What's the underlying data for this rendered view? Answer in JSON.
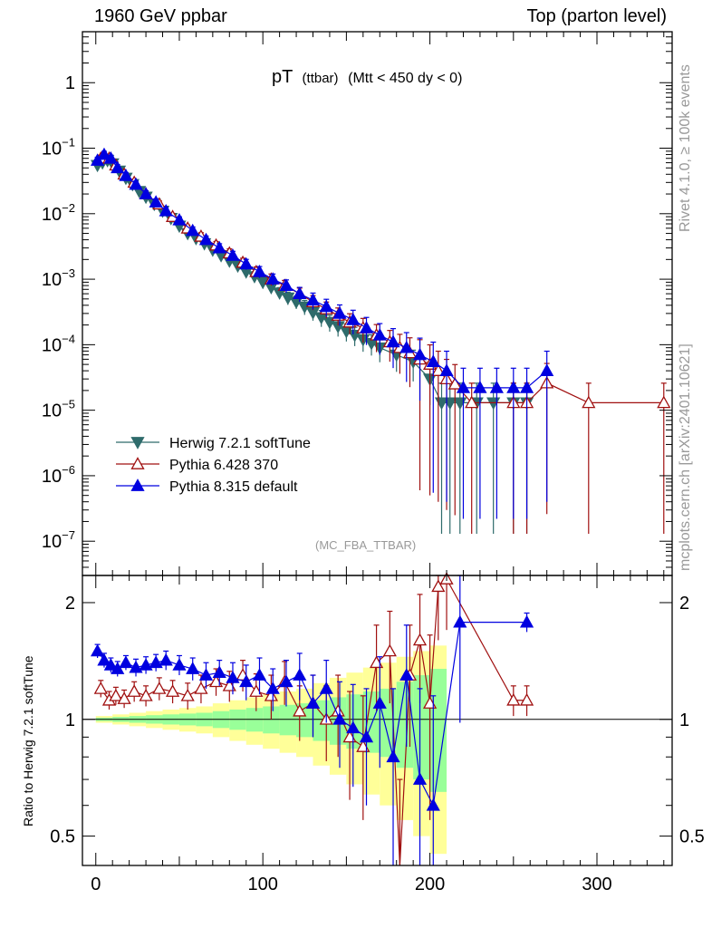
{
  "header": {
    "left": "1960 GeV ppbar",
    "right": "Top (parton level)"
  },
  "side_labels": {
    "rivet": "Rivet 4.1.0, ≥ 100k events",
    "mcplots": "mcplots.cern.ch [arXiv:2401.10621]"
  },
  "chart_data": {
    "type": "scatter",
    "title_main": "pT",
    "title_small": "(ttbar)",
    "title_rest": "(Mtt < 450 dy < 0)",
    "watermark": "(MC_FBA_TTBAR)",
    "ratio_ylabel": "Ratio to Herwig 7.2.1 softTune",
    "xlim": [
      -8,
      345
    ],
    "ylim_main": [
      3e-08,
      6
    ],
    "ylim_ratio": [
      0.42,
      2.35
    ],
    "x_ticks": [
      0,
      100,
      200,
      300
    ],
    "main_y_ticks": [
      {
        "v": 1,
        "base": "1",
        "exp": ""
      },
      {
        "v": 0.1,
        "base": "10",
        "exp": "−1"
      },
      {
        "v": 0.01,
        "base": "10",
        "exp": "−2"
      },
      {
        "v": 0.001,
        "base": "10",
        "exp": "−3"
      },
      {
        "v": 0.0001,
        "base": "10",
        "exp": "−4"
      },
      {
        "v": 1e-05,
        "base": "10",
        "exp": "−5"
      },
      {
        "v": 1e-06,
        "base": "10",
        "exp": "−6"
      },
      {
        "v": 1e-07,
        "base": "10",
        "exp": "−7"
      }
    ],
    "ratio_y_ticks": [
      {
        "v": 0.5,
        "label": "0.5"
      },
      {
        "v": 1,
        "label": "1"
      },
      {
        "v": 2,
        "label": "2"
      }
    ],
    "legend": [
      {
        "name": "Herwig 7.2.1 softTune",
        "color": "#2e6b6b",
        "marker": "tri-down-filled"
      },
      {
        "name": "Pythia 6.428 370",
        "color": "#a01010",
        "marker": "tri-up-open"
      },
      {
        "name": "Pythia 8.315 default",
        "color": "#0000e0",
        "marker": "tri-up-filled"
      }
    ],
    "series": [
      {
        "name": "Herwig 7.2.1 softTune",
        "x": [
          1,
          4,
          7,
          10,
          14,
          18,
          22,
          26,
          30,
          35,
          40,
          45,
          50,
          55,
          60,
          65,
          70,
          75,
          80,
          85,
          90,
          95,
          100,
          105,
          110,
          115,
          120,
          125,
          130,
          135,
          140,
          145,
          150,
          155,
          160,
          165,
          170,
          180,
          190,
          200,
          207,
          212,
          218,
          228,
          238,
          250,
          258
        ],
        "y": [
          0.055,
          0.06,
          0.065,
          0.058,
          0.045,
          0.035,
          0.028,
          0.022,
          0.018,
          0.014,
          0.011,
          0.0085,
          0.0065,
          0.005,
          0.0042,
          0.0035,
          0.0028,
          0.0023,
          0.0019,
          0.0016,
          0.0013,
          0.0011,
          0.0009,
          0.00075,
          0.00062,
          0.00052,
          0.00045,
          0.00038,
          0.00031,
          0.00026,
          0.00022,
          0.00019,
          0.00016,
          0.00014,
          0.00012,
          0.000105,
          9e-05,
          7e-05,
          5.5e-05,
          3e-05,
          1.3e-05,
          1.3e-05,
          1.3e-05,
          1.3e-05,
          1.3e-05,
          1.3e-05,
          1.3e-05
        ],
        "err": [
          0.12,
          0.12,
          0.12,
          0.12,
          0.12,
          0.12,
          0.12,
          0.12,
          0.12,
          0.12,
          0.12,
          0.12,
          0.12,
          0.12,
          0.12,
          0.12,
          0.14,
          0.14,
          0.14,
          0.16,
          0.16,
          0.18,
          0.2,
          0.2,
          0.2,
          0.22,
          0.22,
          0.25,
          0.25,
          0.28,
          0.28,
          0.3,
          0.3,
          0.32,
          0.35,
          0.35,
          0.4,
          0.45,
          0.5,
          0.6,
          0.99,
          0.99,
          0.99,
          0.99,
          0.99,
          0.99,
          0.99
        ]
      },
      {
        "name": "Pythia 6.428 370",
        "x": [
          3,
          8,
          12,
          17,
          23,
          30,
          38,
          46,
          55,
          63,
          72,
          80,
          88,
          96,
          105,
          113,
          122,
          130,
          138,
          145,
          152,
          160,
          168,
          176,
          182,
          188,
          194,
          200,
          205,
          210,
          215,
          225,
          250,
          258,
          270,
          295,
          340
        ],
        "y": [
          0.07,
          0.07,
          0.055,
          0.04,
          0.03,
          0.02,
          0.014,
          0.009,
          0.006,
          0.0045,
          0.0033,
          0.0025,
          0.0018,
          0.0013,
          0.001,
          0.0008,
          0.0006,
          0.00045,
          0.00035,
          0.00028,
          0.00022,
          0.00018,
          0.00014,
          0.00011,
          9e-05,
          7.5e-05,
          6e-05,
          5e-05,
          4e-05,
          3e-05,
          2.5e-05,
          1.3e-05,
          1.3e-05,
          1.3e-05,
          2.6e-05,
          1.3e-05,
          1.3e-05
        ],
        "err": [
          0.12,
          0.12,
          0.12,
          0.12,
          0.12,
          0.12,
          0.12,
          0.12,
          0.12,
          0.14,
          0.14,
          0.16,
          0.16,
          0.18,
          0.2,
          0.2,
          0.22,
          0.25,
          0.28,
          0.3,
          0.35,
          0.4,
          0.45,
          0.5,
          0.6,
          0.7,
          0.99,
          0.99,
          0.99,
          0.99,
          0.99,
          0.99,
          0.99,
          0.99,
          0.99,
          0.99,
          0.99
        ]
      },
      {
        "name": "Pythia 8.315 default",
        "x": [
          1,
          5,
          9,
          13,
          18,
          24,
          30,
          36,
          42,
          50,
          58,
          66,
          74,
          82,
          90,
          98,
          106,
          114,
          122,
          130,
          138,
          146,
          154,
          162,
          170,
          178,
          186,
          194,
          202,
          210,
          220,
          230,
          240,
          250,
          258,
          270
        ],
        "y": [
          0.065,
          0.08,
          0.07,
          0.05,
          0.038,
          0.028,
          0.02,
          0.015,
          0.011,
          0.008,
          0.0055,
          0.004,
          0.003,
          0.0023,
          0.0017,
          0.0013,
          0.001,
          0.0008,
          0.0006,
          0.00048,
          0.00038,
          0.0003,
          0.00024,
          0.00018,
          0.00014,
          0.00011,
          9e-05,
          7e-05,
          5.5e-05,
          4e-05,
          2.2e-05,
          2.2e-05,
          2.2e-05,
          2.2e-05,
          2.2e-05,
          4e-05
        ],
        "err": [
          0.12,
          0.12,
          0.12,
          0.12,
          0.12,
          0.12,
          0.12,
          0.12,
          0.12,
          0.12,
          0.14,
          0.14,
          0.16,
          0.16,
          0.18,
          0.2,
          0.2,
          0.22,
          0.25,
          0.28,
          0.3,
          0.35,
          0.4,
          0.45,
          0.5,
          0.6,
          0.7,
          0.8,
          0.99,
          0.99,
          0.99,
          0.99,
          0.99,
          0.99,
          0.99,
          0.99
        ]
      }
    ],
    "ratio_series": [
      {
        "name": "Pythia 6.428 370",
        "x": [
          3,
          8,
          12,
          17,
          23,
          30,
          38,
          46,
          55,
          63,
          72,
          80,
          88,
          96,
          105,
          113,
          122,
          130,
          138,
          145,
          152,
          160,
          168,
          176,
          182,
          188,
          194,
          200,
          205,
          210,
          250,
          258
        ],
        "y": [
          1.2,
          1.12,
          1.15,
          1.13,
          1.18,
          1.15,
          1.2,
          1.18,
          1.15,
          1.2,
          1.25,
          1.22,
          1.3,
          1.18,
          1.15,
          1.25,
          1.05,
          1.1,
          1.0,
          1.05,
          0.9,
          0.85,
          1.4,
          1.5,
          0.4,
          1.3,
          1.6,
          1.1,
          2.2,
          2.3,
          1.12,
          1.12
        ],
        "err": [
          0.06,
          0.06,
          0.06,
          0.06,
          0.07,
          0.07,
          0.08,
          0.08,
          0.09,
          0.1,
          0.1,
          0.11,
          0.12,
          0.13,
          0.15,
          0.16,
          0.17,
          0.2,
          0.22,
          0.25,
          0.28,
          0.3,
          0.35,
          0.4,
          0.3,
          0.45,
          0.5,
          0.55,
          0.6,
          0.6,
          0.1,
          0.1
        ]
      },
      {
        "name": "Pythia 8.315 default",
        "x": [
          1,
          5,
          9,
          13,
          18,
          24,
          30,
          36,
          42,
          50,
          58,
          66,
          74,
          82,
          90,
          98,
          106,
          114,
          122,
          130,
          138,
          146,
          154,
          162,
          170,
          178,
          186,
          194,
          202,
          218,
          258
        ],
        "y": [
          1.5,
          1.42,
          1.38,
          1.35,
          1.4,
          1.36,
          1.38,
          1.4,
          1.42,
          1.38,
          1.35,
          1.3,
          1.32,
          1.28,
          1.25,
          1.3,
          1.2,
          1.25,
          1.3,
          1.1,
          1.2,
          1.0,
          0.95,
          0.9,
          1.1,
          0.8,
          1.3,
          0.7,
          0.6,
          1.78,
          1.78
        ],
        "err": [
          0.06,
          0.06,
          0.06,
          0.06,
          0.06,
          0.07,
          0.07,
          0.07,
          0.08,
          0.08,
          0.09,
          0.1,
          0.1,
          0.12,
          0.13,
          0.14,
          0.15,
          0.17,
          0.18,
          0.2,
          0.22,
          0.25,
          0.28,
          0.3,
          0.35,
          0.4,
          0.45,
          0.5,
          0.55,
          0.8,
          0.1
        ]
      }
    ],
    "reference_band": {
      "x": [
        0,
        10,
        20,
        30,
        40,
        50,
        60,
        70,
        80,
        90,
        100,
        110,
        120,
        130,
        140,
        150,
        160,
        170,
        180,
        190,
        200,
        210
      ],
      "inner": [
        0.01,
        0.015,
        0.02,
        0.025,
        0.03,
        0.035,
        0.04,
        0.05,
        0.06,
        0.07,
        0.08,
        0.09,
        0.1,
        0.12,
        0.14,
        0.16,
        0.18,
        0.2,
        0.25,
        0.3,
        0.35,
        0.4
      ],
      "outer": [
        0.02,
        0.03,
        0.04,
        0.05,
        0.06,
        0.07,
        0.08,
        0.1,
        0.12,
        0.14,
        0.16,
        0.18,
        0.2,
        0.24,
        0.28,
        0.32,
        0.36,
        0.4,
        0.45,
        0.5,
        0.55,
        0.6
      ]
    }
  }
}
